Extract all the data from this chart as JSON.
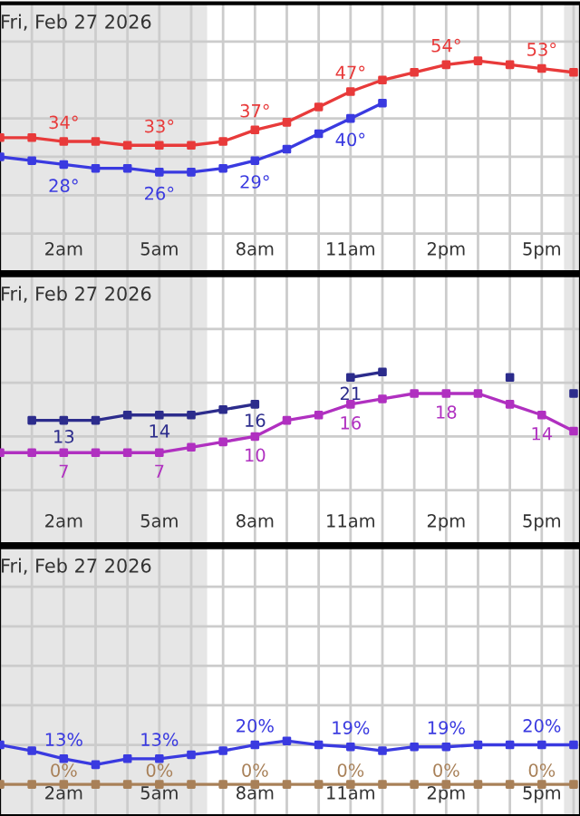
{
  "chart_data": [
    {
      "type": "line",
      "title": "Fri, Feb 27 2026",
      "x": [
        "2026-02-27T00:00",
        "2026-02-27T01:00",
        "2026-02-27T02:00",
        "2026-02-27T03:00",
        "2026-02-27T04:00",
        "2026-02-27T05:00",
        "2026-02-27T06:00",
        "2026-02-27T07:00",
        "2026-02-27T08:00",
        "2026-02-27T09:00",
        "2026-02-27T10:00",
        "2026-02-27T11:00",
        "2026-02-27T12:00",
        "2026-02-27T13:00",
        "2026-02-27T14:00",
        "2026-02-27T15:00",
        "2026-02-27T16:00",
        "2026-02-27T17:00",
        "2026-02-27T18:00"
      ],
      "xlim": [
        "2026-02-27T00:00",
        "2026-02-27T18:12"
      ],
      "xticks": [
        {
          "value": "2026-02-27T02:00",
          "label": "2am"
        },
        {
          "value": "2026-02-27T05:00",
          "label": "5am"
        },
        {
          "value": "2026-02-27T08:00",
          "label": "8am"
        },
        {
          "value": "2026-02-27T11:00",
          "label": "11am"
        },
        {
          "value": "2026-02-27T14:00",
          "label": "2pm"
        },
        {
          "value": "2026-02-27T17:00",
          "label": "5pm"
        }
      ],
      "ylim": [
        0,
        70
      ],
      "yticks": [
        {
          "value": 10,
          "label": null
        },
        {
          "value": 20,
          "label": null
        },
        {
          "value": 30,
          "label": null
        },
        {
          "value": 40,
          "label": null
        },
        {
          "value": 50,
          "label": null
        },
        {
          "value": 60,
          "label": null
        }
      ],
      "grid": true,
      "tick_labels": "x",
      "marker": "square",
      "line_style": "solid",
      "bands": [
        {
          "axis": "x",
          "from": "2026-02-27T00:00",
          "to": "2026-02-27T06:30",
          "color": "#e6e6e6"
        },
        {
          "axis": "x",
          "from": "2026-02-27T17:42",
          "to": "2026-02-27T18:12",
          "color": "#e6e6e6"
        }
      ],
      "series": [
        {
          "color": "#e83a3a",
          "values": [
            35,
            35,
            34,
            34,
            33,
            33,
            33,
            34,
            37,
            39,
            43,
            47,
            50,
            52,
            54,
            55,
            54,
            53,
            52
          ],
          "value_labels": [
            null,
            null,
            "34°",
            null,
            null,
            "33°",
            null,
            null,
            "37°",
            null,
            null,
            "47°",
            null,
            null,
            "54°",
            null,
            null,
            "53°",
            null
          ]
        },
        {
          "color": "#3a3ae0",
          "values": [
            30,
            29,
            28,
            27,
            27,
            26,
            26,
            27,
            29,
            32,
            36,
            40,
            44,
            null,
            null,
            null,
            null,
            null,
            null
          ],
          "value_labels": [
            null,
            null,
            "28°",
            null,
            null,
            "26°",
            null,
            null,
            "29°",
            null,
            null,
            "40°",
            null,
            null,
            null,
            null,
            null,
            null,
            null
          ]
        }
      ]
    },
    {
      "type": "line",
      "title": "Fri, Feb 27 2026",
      "x": [
        "2026-02-27T00:00",
        "2026-02-27T01:00",
        "2026-02-27T02:00",
        "2026-02-27T03:00",
        "2026-02-27T04:00",
        "2026-02-27T05:00",
        "2026-02-27T06:00",
        "2026-02-27T07:00",
        "2026-02-27T08:00",
        "2026-02-27T09:00",
        "2026-02-27T10:00",
        "2026-02-27T11:00",
        "2026-02-27T12:00",
        "2026-02-27T13:00",
        "2026-02-27T14:00",
        "2026-02-27T15:00",
        "2026-02-27T16:00",
        "2026-02-27T17:00",
        "2026-02-27T18:00"
      ],
      "xlim": [
        "2026-02-27T00:00",
        "2026-02-27T18:12"
      ],
      "xticks": [
        {
          "value": "2026-02-27T02:00",
          "label": "2am"
        },
        {
          "value": "2026-02-27T05:00",
          "label": "5am"
        },
        {
          "value": "2026-02-27T08:00",
          "label": "8am"
        },
        {
          "value": "2026-02-27T11:00",
          "label": "11am"
        },
        {
          "value": "2026-02-27T14:00",
          "label": "2pm"
        },
        {
          "value": "2026-02-27T17:00",
          "label": "5pm"
        }
      ],
      "ylim": [
        -10,
        40
      ],
      "yticks": [
        {
          "value": 0,
          "label": null
        },
        {
          "value": 10,
          "label": null
        },
        {
          "value": 20,
          "label": null
        },
        {
          "value": 30,
          "label": null
        }
      ],
      "grid": true,
      "tick_labels": "x",
      "marker": "square",
      "line_style": "solid",
      "bands": [
        {
          "axis": "x",
          "from": "2026-02-27T00:00",
          "to": "2026-02-27T06:30",
          "color": "#e6e6e6"
        },
        {
          "axis": "x",
          "from": "2026-02-27T17:42",
          "to": "2026-02-27T18:12",
          "color": "#e6e6e6"
        }
      ],
      "series": [
        {
          "color": "#b030c0",
          "values": [
            7,
            7,
            7,
            7,
            7,
            7,
            8,
            9,
            10,
            13,
            14,
            16,
            17,
            18,
            18,
            18,
            16,
            14,
            11
          ],
          "value_labels": [
            null,
            null,
            "7",
            null,
            null,
            "7",
            null,
            null,
            "10",
            null,
            null,
            "16",
            null,
            null,
            "18",
            null,
            null,
            "14",
            null
          ]
        },
        {
          "color": "#2c2c8c",
          "values": [
            null,
            13,
            13,
            13,
            14,
            14,
            14,
            15,
            16,
            null,
            null,
            21,
            22,
            null,
            null,
            null,
            21,
            null,
            18
          ],
          "value_labels": [
            null,
            null,
            "13",
            null,
            null,
            "14",
            null,
            null,
            "16",
            null,
            null,
            "21",
            null,
            null,
            null,
            null,
            null,
            null,
            null
          ]
        }
      ]
    },
    {
      "type": "line",
      "title": "Fri, Feb 27 2026",
      "x": [
        "2026-02-27T00:00",
        "2026-02-27T01:00",
        "2026-02-27T02:00",
        "2026-02-27T03:00",
        "2026-02-27T04:00",
        "2026-02-27T05:00",
        "2026-02-27T06:00",
        "2026-02-27T07:00",
        "2026-02-27T08:00",
        "2026-02-27T09:00",
        "2026-02-27T10:00",
        "2026-02-27T11:00",
        "2026-02-27T12:00",
        "2026-02-27T13:00",
        "2026-02-27T14:00",
        "2026-02-27T15:00",
        "2026-02-27T16:00",
        "2026-02-27T17:00",
        "2026-02-27T18:00"
      ],
      "xlim": [
        "2026-02-27T00:00",
        "2026-02-27T18:12"
      ],
      "xticks": [
        {
          "value": "2026-02-27T02:00",
          "label": "2am"
        },
        {
          "value": "2026-02-27T05:00",
          "label": "5am"
        },
        {
          "value": "2026-02-27T08:00",
          "label": "8am"
        },
        {
          "value": "2026-02-27T11:00",
          "label": "11am"
        },
        {
          "value": "2026-02-27T14:00",
          "label": "2pm"
        },
        {
          "value": "2026-02-27T17:00",
          "label": "5pm"
        }
      ],
      "ylim": [
        -16,
        120
      ],
      "yticks": [
        {
          "value": 20,
          "label": null
        },
        {
          "value": 40,
          "label": null
        },
        {
          "value": 60,
          "label": null
        },
        {
          "value": 80,
          "label": null
        },
        {
          "value": 100,
          "label": null
        }
      ],
      "grid": true,
      "tick_labels": "x",
      "marker": "square",
      "line_style": "solid",
      "bands": [
        {
          "axis": "x",
          "from": "2026-02-27T00:00",
          "to": "2026-02-27T06:30",
          "color": "#e6e6e6"
        },
        {
          "axis": "x",
          "from": "2026-02-27T17:42",
          "to": "2026-02-27T18:12",
          "color": "#e6e6e6"
        }
      ],
      "series": [
        {
          "color": "#3a3ae0",
          "values": [
            20,
            17,
            13,
            10,
            13,
            13,
            15,
            17,
            20,
            22,
            20,
            19,
            17,
            19,
            19,
            20,
            20,
            20,
            20
          ],
          "value_labels": [
            null,
            null,
            "13%",
            null,
            null,
            "13%",
            null,
            null,
            "20%",
            null,
            null,
            "19%",
            null,
            null,
            "19%",
            null,
            null,
            "20%",
            null
          ]
        },
        {
          "color": "#a88058",
          "values": [
            0,
            0,
            0,
            0,
            0,
            0,
            0,
            0,
            0,
            0,
            0,
            0,
            0,
            0,
            0,
            0,
            0,
            0,
            0
          ],
          "value_labels": [
            null,
            null,
            "0%",
            null,
            null,
            "0%",
            null,
            null,
            "0%",
            null,
            null,
            "0%",
            null,
            null,
            "0%",
            null,
            null,
            "0%",
            null
          ]
        }
      ]
    }
  ]
}
